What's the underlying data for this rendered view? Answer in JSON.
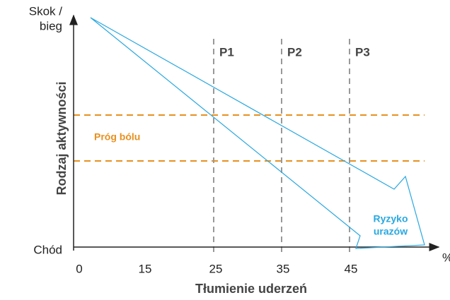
{
  "y_axis": {
    "title": "Rodzaj aktywności",
    "top": [
      "Skok /",
      "bieg"
    ],
    "bottom": "Chód"
  },
  "x_axis": {
    "title": "Tłumienie uderzeń",
    "unit": "%",
    "ticks": [
      "0",
      "15",
      "25",
      "35",
      "45"
    ]
  },
  "zones": [
    "P1",
    "P2",
    "P3"
  ],
  "threshold_label": "Próg bólu",
  "arrow_label": [
    "Ryzyko",
    "urazów"
  ]
}
